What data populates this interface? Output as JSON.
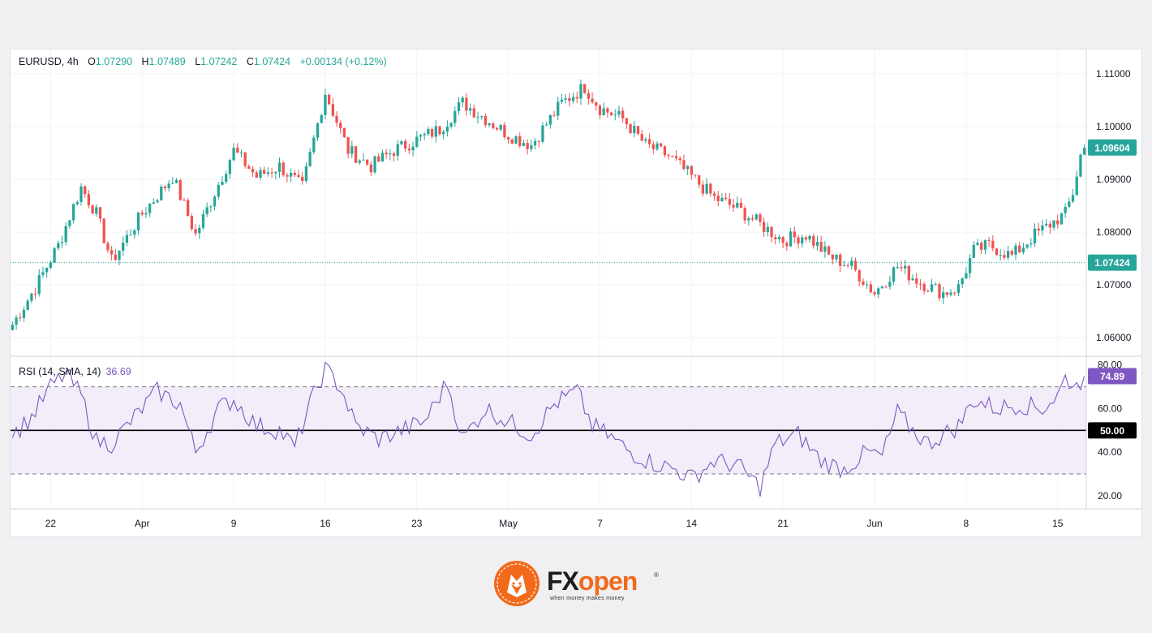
{
  "legend": {
    "symbol": "EURUSD",
    "interval": "4h",
    "o_label": "O",
    "o_value": "1.07290",
    "h_label": "H",
    "h_value": "1.07489",
    "l_label": "L",
    "l_value": "1.07242",
    "c_label": "C",
    "c_value": "1.07424",
    "change": "+0.00134 (+0.12%)"
  },
  "rsi_legend": {
    "label": "RSI (14, SMA, 14)",
    "value": "36.69"
  },
  "brand": {
    "fx": "FX",
    "open": "open",
    "tagline": "when money makes money",
    "reg": "®"
  },
  "colors": {
    "up": "#26a69a",
    "down": "#ef5350",
    "rsi": "#7e57c2",
    "rsi_band": "#ede7f6",
    "grid": "#f0f3fa",
    "text": "#131722",
    "axis_text": "#131722",
    "brand_orange": "#f26a1b"
  },
  "chart_data": [
    {
      "type": "candlestick",
      "symbol": "EURUSD",
      "interval": "4h",
      "y_ticks": [
        1.11,
        1.1,
        1.09,
        1.08,
        1.07,
        1.06
      ],
      "y_tick_labels": [
        "1.11000",
        "1.10000",
        "1.09000",
        "1.08000",
        "1.07000",
        "1.06000"
      ],
      "ylim": [
        1.0565,
        1.1146
      ],
      "x_tick_labels": [
        "22",
        "Apr",
        "9",
        "16",
        "23",
        "May",
        "7",
        "14",
        "21",
        "Jun",
        "8",
        "15"
      ],
      "x_tick_index": [
        10,
        34,
        58,
        82,
        106,
        130,
        154,
        178,
        202,
        226,
        250,
        274
      ],
      "n_bars": 282,
      "price_labels": [
        {
          "value": 1.09604,
          "label": "1.09604",
          "kind": "last"
        },
        {
          "value": 1.07424,
          "label": "1.07424",
          "kind": "line"
        }
      ],
      "keypoints_close": [
        [
          0,
          1.0625
        ],
        [
          6,
          1.0695
        ],
        [
          12,
          1.0775
        ],
        [
          18,
          1.0885
        ],
        [
          22,
          1.0835
        ],
        [
          26,
          1.0745
        ],
        [
          34,
          1.0835
        ],
        [
          42,
          1.0905
        ],
        [
          48,
          1.0795
        ],
        [
          58,
          1.0955
        ],
        [
          64,
          1.0905
        ],
        [
          70,
          1.0925
        ],
        [
          76,
          1.0885
        ],
        [
          82,
          1.1065
        ],
        [
          88,
          1.0955
        ],
        [
          94,
          1.0925
        ],
        [
          100,
          1.0955
        ],
        [
          106,
          1.0975
        ],
        [
          112,
          1.0995
        ],
        [
          118,
          1.1045
        ],
        [
          124,
          1.1015
        ],
        [
          130,
          1.0985
        ],
        [
          136,
          1.0965
        ],
        [
          144,
          1.1045
        ],
        [
          150,
          1.1075
        ],
        [
          154,
          1.1035
        ],
        [
          160,
          1.1015
        ],
        [
          166,
          1.0965
        ],
        [
          172,
          1.0945
        ],
        [
          178,
          1.0905
        ],
        [
          184,
          1.0865
        ],
        [
          190,
          1.0845
        ],
        [
          196,
          1.0815
        ],
        [
          202,
          1.0785
        ],
        [
          208,
          1.0795
        ],
        [
          214,
          1.0755
        ],
        [
          220,
          1.0735
        ],
        [
          226,
          1.0685
        ],
        [
          232,
          1.0735
        ],
        [
          238,
          1.0705
        ],
        [
          244,
          1.0685
        ],
        [
          248,
          1.0695
        ],
        [
          252,
          1.0765
        ],
        [
          256,
          1.0775
        ],
        [
          262,
          1.0755
        ],
        [
          268,
          1.0795
        ],
        [
          272,
          1.0815
        ],
        [
          276,
          1.0835
        ],
        [
          278,
          1.0875
        ],
        [
          280,
          1.0945
        ],
        [
          281,
          1.096
        ]
      ]
    },
    {
      "type": "line",
      "name": "RSI (14, SMA, 14)",
      "last_value": 74.89,
      "legend_value": 36.69,
      "y_ticks": [
        80,
        60,
        40,
        20
      ],
      "y_tick_labels": [
        "80.00",
        "60.00",
        "40.00",
        "20.00"
      ],
      "ylim": [
        14,
        84
      ],
      "bands": [
        30,
        50,
        70
      ],
      "mid_label": "50.00",
      "last_label": "74.89",
      "keypoints": [
        [
          0,
          48
        ],
        [
          5,
          56
        ],
        [
          10,
          70
        ],
        [
          14,
          76
        ],
        [
          18,
          66
        ],
        [
          22,
          45
        ],
        [
          26,
          44
        ],
        [
          32,
          56
        ],
        [
          38,
          68
        ],
        [
          44,
          62
        ],
        [
          48,
          40
        ],
        [
          54,
          60
        ],
        [
          58,
          64
        ],
        [
          64,
          52
        ],
        [
          70,
          50
        ],
        [
          74,
          42
        ],
        [
          78,
          62
        ],
        [
          82,
          78
        ],
        [
          86,
          70
        ],
        [
          90,
          52
        ],
        [
          96,
          46
        ],
        [
          102,
          50
        ],
        [
          108,
          54
        ],
        [
          114,
          72
        ],
        [
          118,
          46
        ],
        [
          124,
          60
        ],
        [
          130,
          54
        ],
        [
          136,
          48
        ],
        [
          142,
          62
        ],
        [
          148,
          68
        ],
        [
          152,
          52
        ],
        [
          156,
          48
        ],
        [
          162,
          40
        ],
        [
          168,
          35
        ],
        [
          174,
          32
        ],
        [
          178,
          28
        ],
        [
          184,
          36
        ],
        [
          190,
          34
        ],
        [
          196,
          24
        ],
        [
          200,
          44
        ],
        [
          206,
          48
        ],
        [
          212,
          36
        ],
        [
          218,
          32
        ],
        [
          224,
          40
        ],
        [
          228,
          38
        ],
        [
          232,
          58
        ],
        [
          236,
          50
        ],
        [
          240,
          44
        ],
        [
          244,
          48
        ],
        [
          248,
          52
        ],
        [
          252,
          64
        ],
        [
          258,
          60
        ],
        [
          264,
          62
        ],
        [
          270,
          60
        ],
        [
          274,
          66
        ],
        [
          276,
          74
        ],
        [
          279,
          70
        ],
        [
          281,
          74.89
        ]
      ]
    }
  ]
}
